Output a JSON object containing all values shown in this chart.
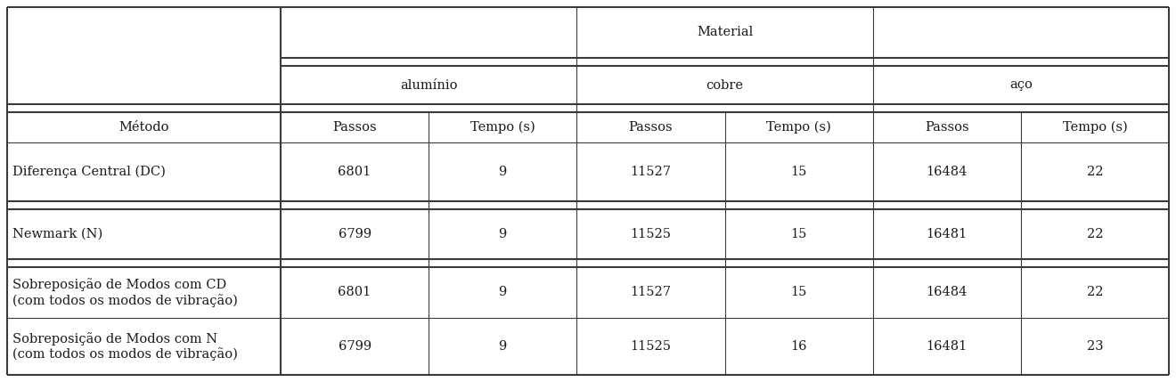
{
  "title": "Material",
  "col_groups": [
    "alumínio",
    "cobre",
    "aço"
  ],
  "sub_headers": [
    "Passos",
    "Tempo (s)",
    "Passos",
    "Tempo (s)",
    "Passos",
    "Tempo (s)"
  ],
  "row_header": "Método",
  "rows": [
    {
      "label": "Diferença Central (DC)",
      "values": [
        "6801",
        "9",
        "11527",
        "15",
        "16484",
        "22"
      ]
    },
    {
      "label": "Newmark (N)",
      "values": [
        "6799",
        "9",
        "11525",
        "15",
        "16481",
        "22"
      ]
    },
    {
      "label": "Sobreposição de Modos com CD\n(com todos os modos de vibração)",
      "values": [
        "6801",
        "9",
        "11527",
        "15",
        "16484",
        "22"
      ]
    },
    {
      "label": "Sobreposição de Modos com N\n(com todos os modos de vibração)",
      "values": [
        "6799",
        "9",
        "11525",
        "16",
        "16481",
        "23"
      ]
    }
  ],
  "bg_color": "#ffffff",
  "text_color": "#1a1a1a",
  "line_color": "#3a3a3a",
  "font_size": 10.5,
  "header_font_size": 10.5,
  "fig_width": 13.2,
  "fig_height": 4.29,
  "dpi": 100
}
